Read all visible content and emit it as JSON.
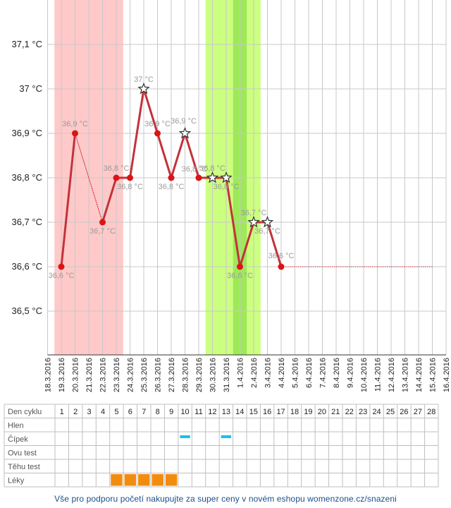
{
  "chart_data": {
    "type": "line",
    "title": "",
    "xlabel": "",
    "ylabel": "",
    "ylim": [
      36.4,
      37.2
    ],
    "y_ticks": [
      {
        "v": 36.5,
        "label": "36,5 °C"
      },
      {
        "v": 36.6,
        "label": "36,6 °C"
      },
      {
        "v": 36.7,
        "label": "36,7 °C"
      },
      {
        "v": 36.8,
        "label": "36,8 °C"
      },
      {
        "v": 36.9,
        "label": "36,9 °C"
      },
      {
        "v": 37.0,
        "label": "37 °C"
      },
      {
        "v": 37.1,
        "label": "37,1 °C"
      }
    ],
    "dates": [
      "18.3.2016",
      "19.3.2016",
      "20.3.2016",
      "21.3.2016",
      "22.3.2016",
      "23.3.2016",
      "24.3.2016",
      "25.3.2016",
      "26.3.2016",
      "27.3.2016",
      "28.3.2016",
      "29.3.2016",
      "30.3.2016",
      "31.3.2016",
      "1.4.2016",
      "2.4.2016",
      "3.4.2016",
      "4.4.2016",
      "5.4.2016",
      "6.4.2016",
      "7.4.2016",
      "8.4.2016",
      "9.4.2016",
      "10.4.2016",
      "11.4.2016",
      "12.4.2016",
      "13.4.2016",
      "14.4.2016",
      "15.4.2016",
      "16.4.2016"
    ],
    "series": [
      {
        "values": [
          {
            "date": "19.3.2016",
            "y": 36.6,
            "label": "36,6 °C",
            "marker": "dot"
          },
          {
            "date": "20.3.2016",
            "y": 36.9,
            "label": "36,9 °C",
            "marker": "dot"
          },
          {
            "date": "22.3.2016",
            "y": 36.7,
            "label": "36,7 °C",
            "marker": "dot"
          },
          {
            "date": "23.3.2016",
            "y": 36.8,
            "label": "36,8 °C",
            "marker": "dot"
          },
          {
            "date": "24.3.2016",
            "y": 36.8,
            "label": "36,8 °C",
            "marker": "dot"
          },
          {
            "date": "25.3.2016",
            "y": 37.0,
            "label": "37 °C",
            "marker": "star"
          },
          {
            "date": "26.3.2016",
            "y": 36.9,
            "label": "36,9 °C",
            "marker": "dot"
          },
          {
            "date": "27.3.2016",
            "y": 36.8,
            "label": "36,8 °C",
            "marker": "dot"
          },
          {
            "date": "28.3.2016",
            "y": 36.9,
            "label": "36,9 °C",
            "marker": "star"
          },
          {
            "date": "29.3.2016",
            "y": 36.8,
            "label": "36,8 °C",
            "marker": "dot"
          },
          {
            "date": "30.3.2016",
            "y": 36.8,
            "label": "36,8 °C",
            "marker": "star"
          },
          {
            "date": "31.3.2016",
            "y": 36.8,
            "label": "36,8 °C",
            "marker": "star"
          },
          {
            "date": "1.4.2016",
            "y": 36.6,
            "label": "36,6 °C",
            "marker": "dot"
          },
          {
            "date": "2.4.2016",
            "y": 36.7,
            "label": "36,7 °C",
            "marker": "star"
          },
          {
            "date": "3.4.2016",
            "y": 36.7,
            "label": "36,7 °C",
            "marker": "star"
          },
          {
            "date": "4.4.2016",
            "y": 36.6,
            "label": "36,6 °C",
            "marker": "dot"
          }
        ],
        "projection_to": "15.4.2016"
      }
    ],
    "bands": [
      {
        "from": "18.3.2016",
        "to": "23.3.2016",
        "color": "#ffc9c9"
      },
      {
        "from": "29.3.2016",
        "to": "2.4.2016",
        "color": "#ccff7f"
      },
      {
        "from": "31.3.2016",
        "to": "1.4.2016",
        "color": "#9ee85a"
      }
    ],
    "grid": true,
    "legend": "none"
  },
  "table": {
    "rows": [
      "Den cyklu",
      "Hlen",
      "Čípek",
      "Ovu test",
      "Těhu test",
      "Léky"
    ],
    "days": [
      "1",
      "2",
      "3",
      "4",
      "5",
      "6",
      "7",
      "8",
      "9",
      "10",
      "11",
      "12",
      "13",
      "14",
      "15",
      "16",
      "17",
      "18",
      "19",
      "20",
      "21",
      "22",
      "23",
      "24",
      "25",
      "26",
      "27",
      "28"
    ],
    "cipek_days": [
      10,
      13
    ],
    "leky_days": [
      5,
      6,
      7,
      8,
      9
    ],
    "colors": {
      "cipek": "#19c3e8",
      "leky": "#f28c0f"
    }
  },
  "colors": {
    "line": "#c3323a",
    "dot": "#dc1414",
    "grid": "#c8c8c8",
    "label": "#9a9a9a"
  },
  "footer": "Vše pro podporu početí nakupujte za super ceny v novém eshopu womenzone.cz/snazeni"
}
